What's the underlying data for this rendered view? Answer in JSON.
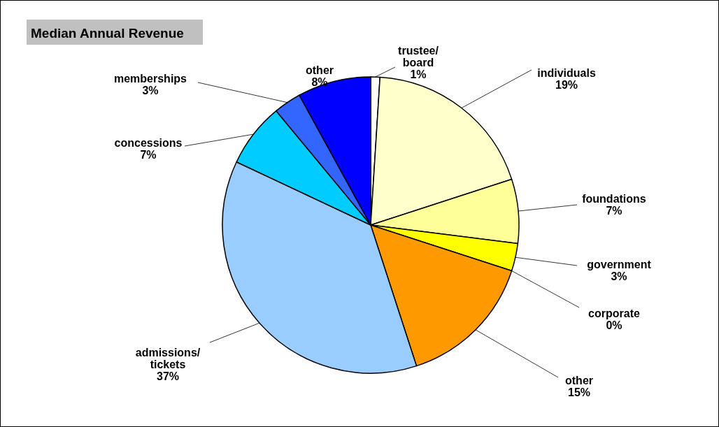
{
  "chart_data": {
    "type": "pie",
    "title": "Median Annual Revenue",
    "categories": [
      "trustee/board",
      "individuals",
      "foundations",
      "government",
      "corporate",
      "other",
      "admissions/tickets",
      "concessions",
      "memberships",
      "other"
    ],
    "values": [
      1,
      19,
      7,
      3,
      0,
      15,
      37,
      7,
      3,
      8
    ],
    "value_labels": [
      "1%",
      "19%",
      "7%",
      "3%",
      "0%",
      "15%",
      "37%",
      "7%",
      "3%",
      "8%"
    ],
    "colors": [
      "#ffffff",
      "#ffffcc",
      "#ffff99",
      "#ffff00",
      "#ffcc00",
      "#ff9900",
      "#99ccff",
      "#00ccff",
      "#3366ff",
      "#0000ff"
    ]
  }
}
